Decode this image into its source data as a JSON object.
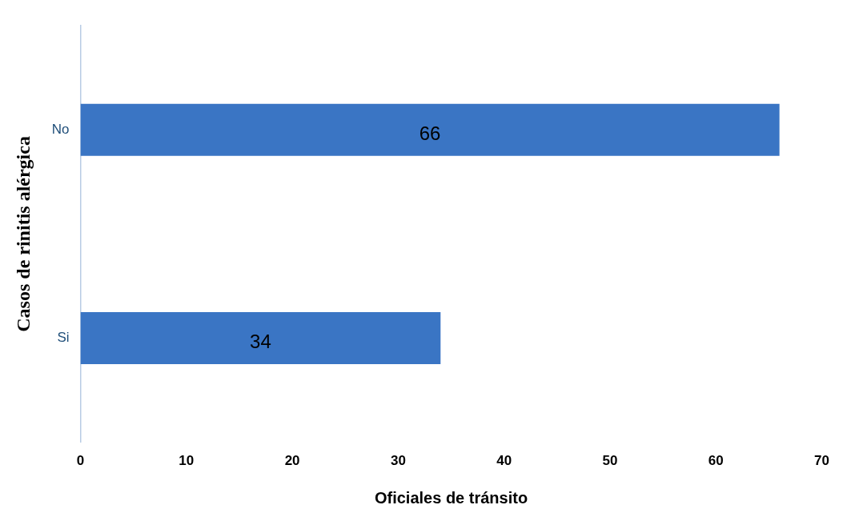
{
  "chart_data": {
    "type": "bar",
    "orientation": "horizontal",
    "xlabel": "Oficiales de tránsito",
    "ylabel": "Casos de rinitis alérgica",
    "categories": [
      "No",
      "Si"
    ],
    "values": [
      66,
      34
    ],
    "color": "#3a75c4",
    "xlim": [
      0,
      70
    ],
    "xticks": [
      0,
      10,
      20,
      30,
      40,
      50,
      60,
      70
    ],
    "data_labels": true,
    "grid": false,
    "legend": false
  }
}
